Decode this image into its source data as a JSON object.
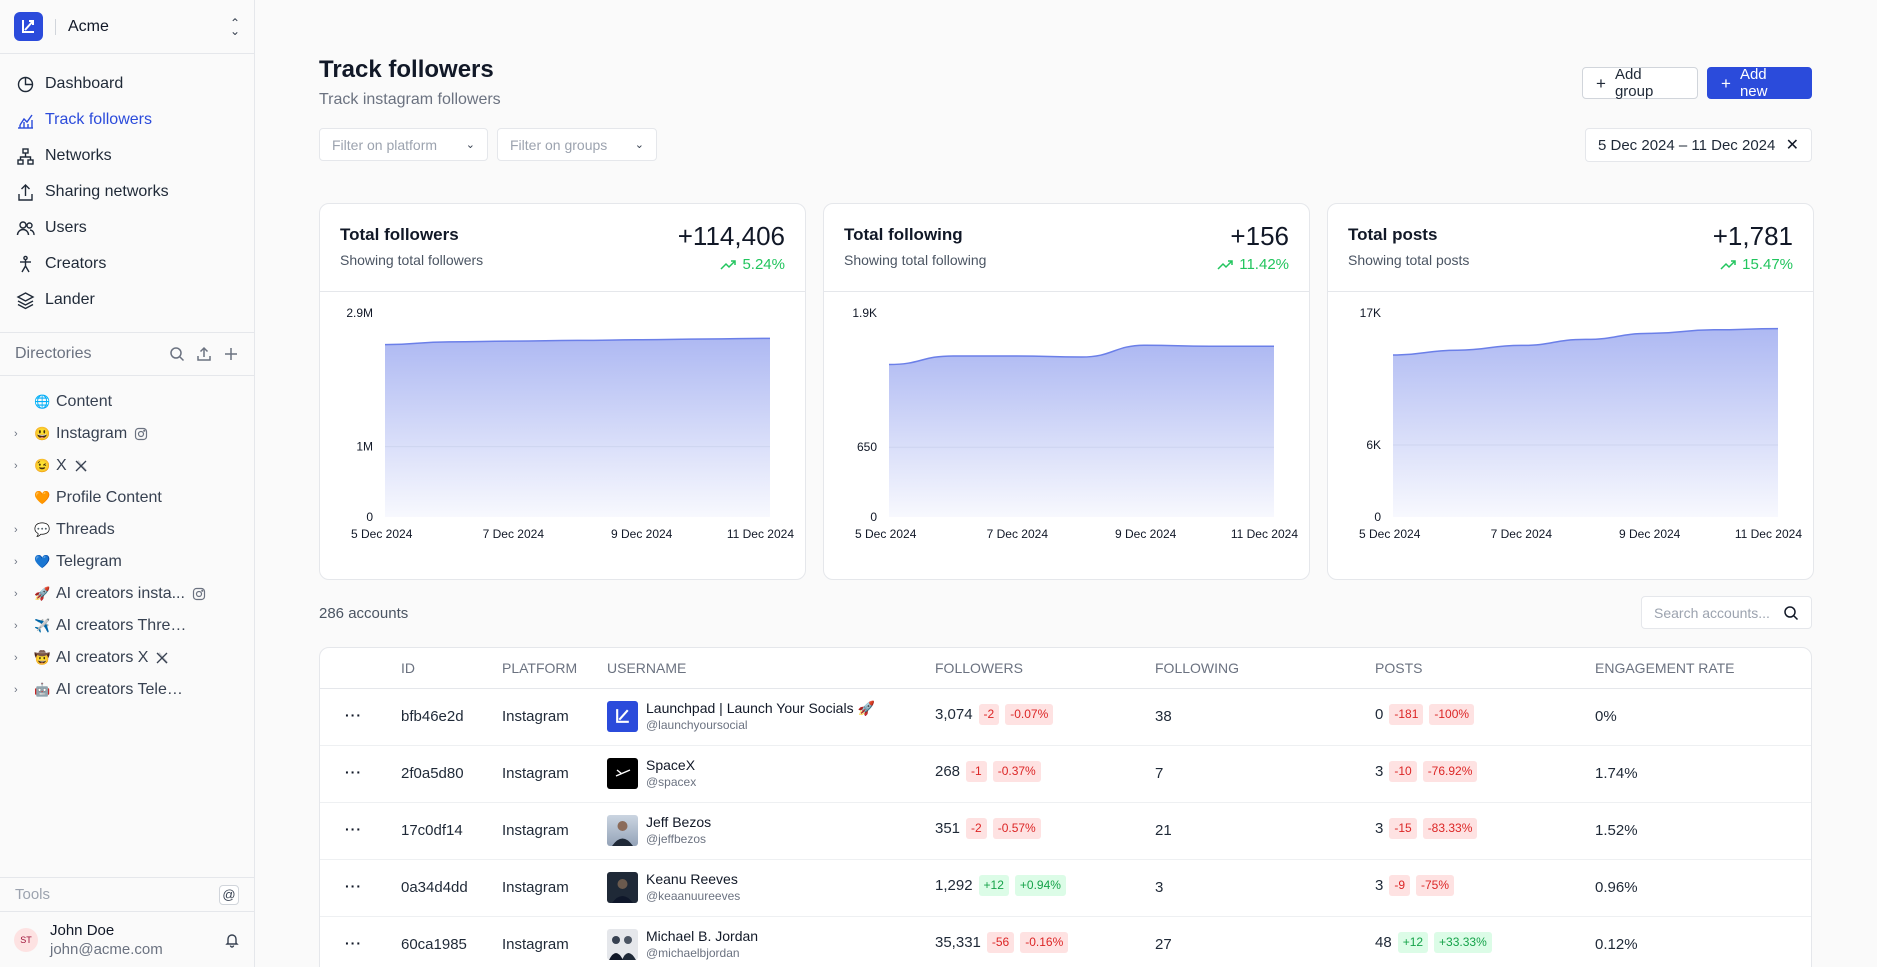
{
  "workspace": {
    "name": "Acme"
  },
  "nav": [
    {
      "label": "Dashboard",
      "icon": "dashboard-icon",
      "active": false
    },
    {
      "label": "Track followers",
      "icon": "chart-line-icon",
      "active": true
    },
    {
      "label": "Networks",
      "icon": "network-icon",
      "active": false
    },
    {
      "label": "Sharing networks",
      "icon": "share-icon",
      "active": false
    },
    {
      "label": "Users",
      "icon": "users-icon",
      "active": false
    },
    {
      "label": "Creators",
      "icon": "person-icon",
      "active": false
    },
    {
      "label": "Lander",
      "icon": "layers-icon",
      "active": false
    }
  ],
  "directories": {
    "title": "Directories",
    "items": [
      {
        "label": "Content",
        "emoji": "🌐",
        "expandable": false,
        "platform_icon": ""
      },
      {
        "label": "Instagram",
        "emoji": "😃",
        "expandable": true,
        "platform_icon": "instagram-icon"
      },
      {
        "label": "X",
        "emoji": "😉",
        "expandable": true,
        "platform_icon": "x-icon"
      },
      {
        "label": "Profile Content",
        "emoji": "🧡",
        "expandable": false,
        "platform_icon": ""
      },
      {
        "label": "Threads",
        "emoji": "💬",
        "expandable": true,
        "platform_icon": ""
      },
      {
        "label": "Telegram",
        "emoji": "💙",
        "expandable": true,
        "platform_icon": ""
      },
      {
        "label": "AI creators insta...",
        "emoji": "🚀",
        "expandable": true,
        "platform_icon": "instagram-icon"
      },
      {
        "label": "AI creators Threads",
        "emoji": "✈️",
        "expandable": true,
        "platform_icon": ""
      },
      {
        "label": "AI creators X",
        "emoji": "🤠",
        "expandable": true,
        "platform_icon": "x-icon"
      },
      {
        "label": "AI creators Telegra...",
        "emoji": "🤖",
        "expandable": true,
        "platform_icon": ""
      }
    ]
  },
  "tools": {
    "label": "Tools",
    "at_symbol": "@"
  },
  "user": {
    "initials": "ST",
    "name": "John Doe",
    "email": "john@acme.com"
  },
  "page": {
    "title": "Track followers",
    "subtitle": "Track instagram followers"
  },
  "actions": {
    "add_group": "Add group",
    "add_new": "Add new"
  },
  "filters": {
    "platform_placeholder": "Filter on platform",
    "groups_placeholder": "Filter on groups"
  },
  "date_range": {
    "label": "5 Dec 2024 – 11 Dec 2024",
    "clear": "✕"
  },
  "cards": [
    {
      "title": "Total followers",
      "subtitle": "Showing total followers",
      "value": "+114,406",
      "change": "5.24%"
    },
    {
      "title": "Total following",
      "subtitle": "Showing total following",
      "value": "+156",
      "change": "11.42%"
    },
    {
      "title": "Total posts",
      "subtitle": "Showing total posts",
      "value": "+1,781",
      "change": "15.47%"
    }
  ],
  "chart_data": [
    {
      "type": "area",
      "x": [
        "5 Dec 2024",
        "6 Dec 2024",
        "7 Dec 2024",
        "8 Dec 2024",
        "9 Dec 2024",
        "10 Dec 2024",
        "11 Dec 2024"
      ],
      "x_tick_labels": [
        "5 Dec 2024",
        "7 Dec 2024",
        "9 Dec 2024",
        "11 Dec 2024"
      ],
      "y_tick_labels": [
        "0",
        "1M",
        "2.9M"
      ],
      "y_ticks": [
        0,
        1000000,
        2900000
      ],
      "ylim": [
        0,
        2900000
      ],
      "series": [
        {
          "values": [
            2450000,
            2490000,
            2500000,
            2510000,
            2520000,
            2530000,
            2540000
          ]
        }
      ],
      "color": "#6b7fe8"
    },
    {
      "type": "area",
      "x": [
        "5 Dec 2024",
        "6 Dec 2024",
        "7 Dec 2024",
        "8 Dec 2024",
        "9 Dec 2024",
        "10 Dec 2024",
        "11 Dec 2024"
      ],
      "x_tick_labels": [
        "5 Dec 2024",
        "7 Dec 2024",
        "9 Dec 2024",
        "11 Dec 2024"
      ],
      "y_tick_labels": [
        "0",
        "650",
        "1.9K"
      ],
      "y_ticks": [
        0,
        650,
        1900
      ],
      "ylim": [
        0,
        1900
      ],
      "series": [
        {
          "values": [
            1420,
            1500,
            1500,
            1490,
            1600,
            1590,
            1590
          ]
        }
      ],
      "color": "#6b7fe8"
    },
    {
      "type": "area",
      "x": [
        "5 Dec 2024",
        "6 Dec 2024",
        "7 Dec 2024",
        "8 Dec 2024",
        "9 Dec 2024",
        "10 Dec 2024",
        "11 Dec 2024"
      ],
      "x_tick_labels": [
        "5 Dec 2024",
        "7 Dec 2024",
        "9 Dec 2024",
        "11 Dec 2024"
      ],
      "y_tick_labels": [
        "0",
        "6K",
        "17K"
      ],
      "y_ticks": [
        0,
        6000,
        17000
      ],
      "ylim": [
        0,
        17000
      ],
      "series": [
        {
          "values": [
            13500,
            13900,
            14300,
            14800,
            15300,
            15600,
            15700
          ]
        }
      ],
      "color": "#6b7fe8"
    }
  ],
  "accounts": {
    "count_label": "286 accounts",
    "search_placeholder": "Search accounts..."
  },
  "table": {
    "headers": [
      "ID",
      "PLATFORM",
      "USERNAME",
      "FOLLOWERS",
      "FOLLOWING",
      "POSTS",
      "ENGAGEMENT RATE"
    ],
    "rows": [
      {
        "id": "bfb46e2d",
        "platform": "Instagram",
        "name": "Launchpad | Launch Your Socials 🚀",
        "handle": "@launchyoursocial",
        "avatar": "launchpad",
        "followers": "3,074",
        "f_delta": "-2",
        "f_delta_sign": "neg",
        "f_pct": "-0.07%",
        "f_pct_sign": "neg",
        "following": "38",
        "posts": "0",
        "p_delta": "-181",
        "p_delta_sign": "neg",
        "p_pct": "-100%",
        "p_pct_sign": "neg",
        "engagement": "0%"
      },
      {
        "id": "2f0a5d80",
        "platform": "Instagram",
        "name": "SpaceX",
        "handle": "@spacex",
        "avatar": "spacex",
        "followers": "268",
        "f_delta": "-1",
        "f_delta_sign": "neg",
        "f_pct": "-0.37%",
        "f_pct_sign": "neg",
        "following": "7",
        "posts": "3",
        "p_delta": "-10",
        "p_delta_sign": "neg",
        "p_pct": "-76.92%",
        "p_pct_sign": "neg",
        "engagement": "1.74%"
      },
      {
        "id": "17c0df14",
        "platform": "Instagram",
        "name": "Jeff Bezos",
        "handle": "@jeffbezos",
        "avatar": "photo",
        "followers": "351",
        "f_delta": "-2",
        "f_delta_sign": "neg",
        "f_pct": "-0.57%",
        "f_pct_sign": "neg",
        "following": "21",
        "posts": "3",
        "p_delta": "-15",
        "p_delta_sign": "neg",
        "p_pct": "-83.33%",
        "p_pct_sign": "neg",
        "engagement": "1.52%"
      },
      {
        "id": "0a34d4dd",
        "platform": "Instagram",
        "name": "Keanu Reeves",
        "handle": "@keaanuureeves",
        "avatar": "photo-dark",
        "followers": "1,292",
        "f_delta": "+12",
        "f_delta_sign": "pos",
        "f_pct": "+0.94%",
        "f_pct_sign": "pos",
        "following": "3",
        "posts": "3",
        "p_delta": "-9",
        "p_delta_sign": "neg",
        "p_pct": "-75%",
        "p_pct_sign": "neg",
        "engagement": "0.96%"
      },
      {
        "id": "60ca1985",
        "platform": "Instagram",
        "name": "Michael B. Jordan",
        "handle": "@michaelbjordan",
        "avatar": "photo-bw",
        "followers": "35,331",
        "f_delta": "-56",
        "f_delta_sign": "neg",
        "f_pct": "-0.16%",
        "f_pct_sign": "neg",
        "following": "27",
        "posts": "48",
        "p_delta": "+12",
        "p_delta_sign": "pos",
        "p_pct": "+33.33%",
        "p_pct_sign": "pos",
        "engagement": "0.12%"
      }
    ]
  }
}
